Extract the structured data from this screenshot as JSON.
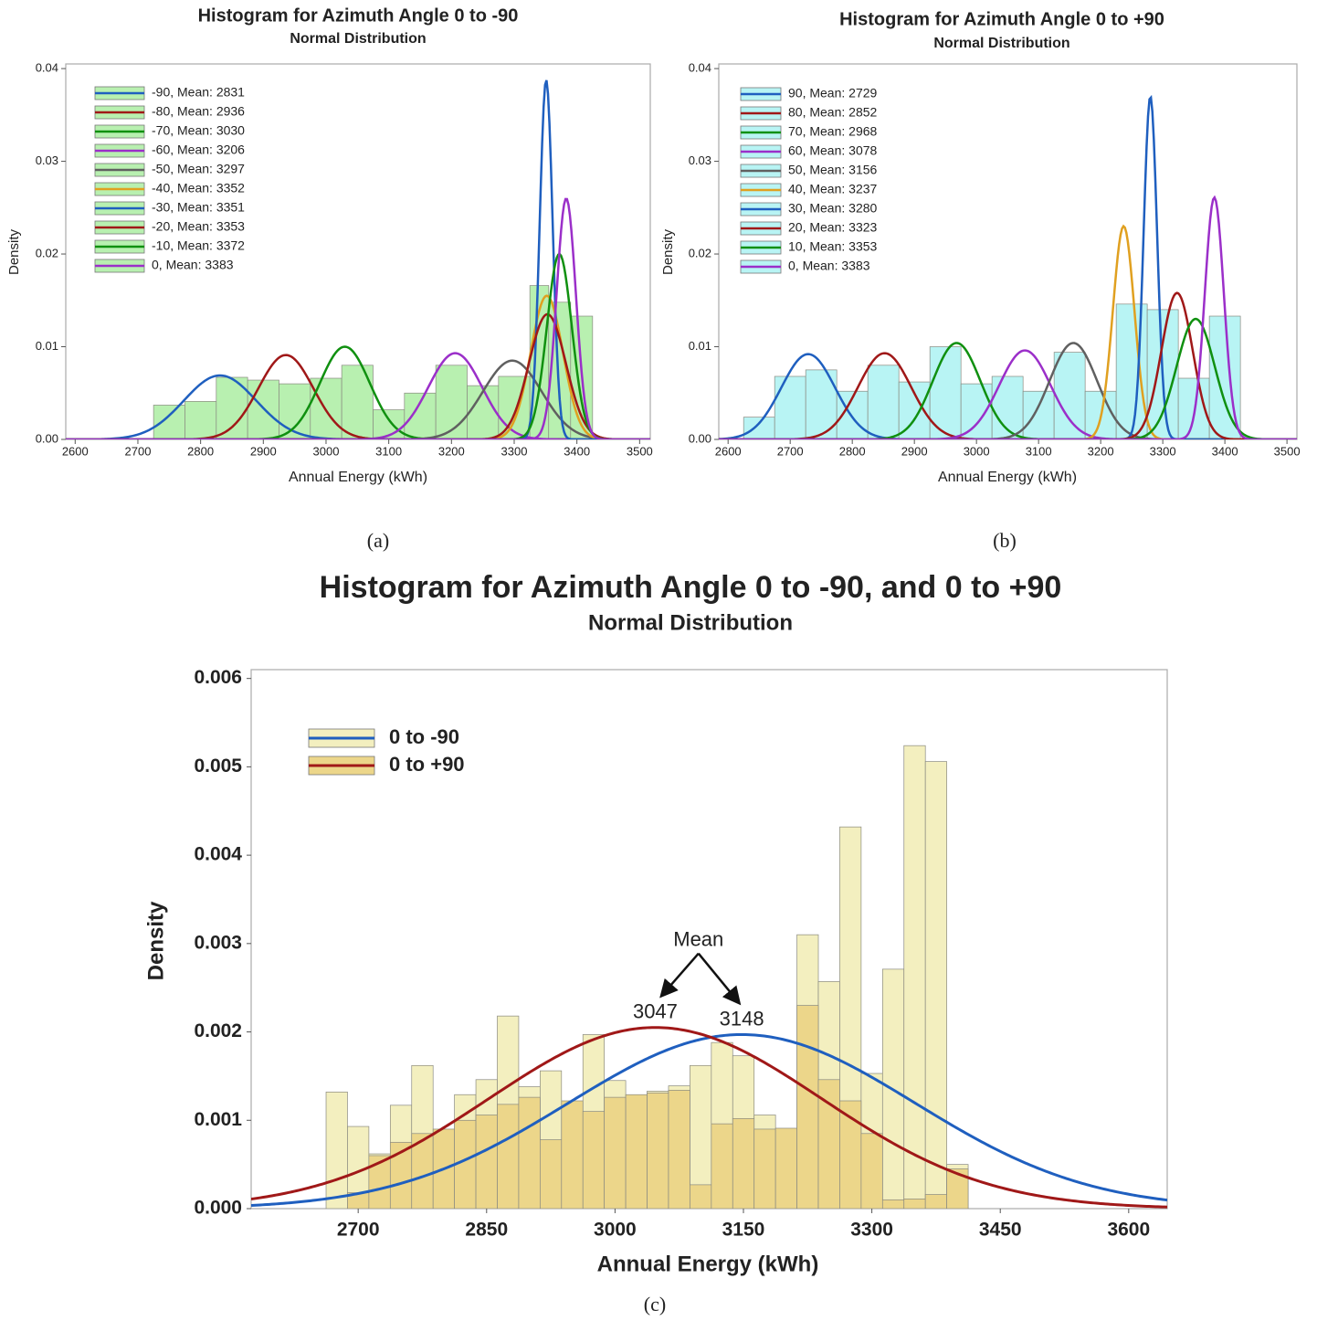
{
  "chart_data": [
    {
      "type": "histogram",
      "title": "Histogram for Azimuth Angle 0 to -90",
      "subtitle": "Normal Distribution",
      "xlabel": "Annual Energy (kWh)",
      "ylabel": "Density",
      "caption": "(a)",
      "xlim": [
        2585,
        3517
      ],
      "ylim": [
        0,
        0.0405
      ],
      "xticks": [
        2600,
        2700,
        2800,
        2900,
        3000,
        3100,
        3200,
        3300,
        3400,
        3500
      ],
      "yticks": [
        {
          "value": 0,
          "label": "0.00"
        },
        0.01,
        0.02,
        0.03,
        0.04
      ],
      "bins": [
        2725,
        2775,
        2825,
        2875,
        2925,
        2975,
        3025,
        3075,
        3125,
        3175,
        3225,
        3275,
        3325,
        3355,
        3390,
        3425
      ],
      "values": [
        0.0037,
        0.0041,
        0.0067,
        0.0064,
        0.006,
        0.0066,
        0.008,
        0.0032,
        0.005,
        0.008,
        0.0058,
        0.0068,
        0.0166,
        0.0148,
        0.0133
      ],
      "bar_color": "#b8f0b0",
      "series": [
        {
          "name": "-90, Mean: 2831",
          "color": "#1f5fbf",
          "mean": 2831,
          "peak": 0.0069
        },
        {
          "name": "-80, Mean: 2936",
          "color": "#a01818",
          "mean": 2936,
          "peak": 0.0091
        },
        {
          "name": "-70, Mean: 3030",
          "color": "#109010",
          "mean": 3030,
          "peak": 0.01
        },
        {
          "name": "-60, Mean: 3206",
          "color": "#9b2fc9",
          "mean": 3206,
          "peak": 0.0093
        },
        {
          "name": "-50, Mean: 3297",
          "color": "#606060",
          "mean": 3297,
          "peak": 0.0085
        },
        {
          "name": "-40, Mean: 3352",
          "color": "#e0a020",
          "mean": 3352,
          "peak": 0.0155
        },
        {
          "name": "-30, Mean: 3351",
          "color": "#1f5fbf",
          "mean": 3351,
          "peak": 0.0388
        },
        {
          "name": "-20, Mean: 3353",
          "color": "#a01818",
          "mean": 3353,
          "peak": 0.0135
        },
        {
          "name": "-10, Mean: 3372",
          "color": "#109010",
          "mean": 3372,
          "peak": 0.02
        },
        {
          "name": "0, Mean: 3383",
          "color": "#9b2fc9",
          "mean": 3383,
          "peak": 0.026
        }
      ]
    },
    {
      "type": "histogram",
      "title": "Histogram for Azimuth Angle 0 to +90",
      "subtitle": "Normal Distribution",
      "xlabel": "Annual Energy (kWh)",
      "ylabel": "Density",
      "caption": "(b)",
      "xlim": [
        2585,
        3516
      ],
      "ylim": [
        0,
        0.0405
      ],
      "xticks": [
        2600,
        2700,
        2800,
        2900,
        3000,
        3100,
        3200,
        3300,
        3400,
        3500
      ],
      "yticks": [
        {
          "value": 0,
          "label": "0.00"
        },
        0.01,
        0.02,
        0.03,
        0.04
      ],
      "bins": [
        2625,
        2675,
        2725,
        2775,
        2825,
        2875,
        2925,
        2975,
        3025,
        3075,
        3125,
        3175,
        3225,
        3275,
        3325,
        3375,
        3425
      ],
      "values": [
        0.0024,
        0.0068,
        0.0075,
        0.0052,
        0.008,
        0.0062,
        0.01,
        0.006,
        0.0068,
        0.0052,
        0.0094,
        0.0052,
        0.0146,
        0.014,
        0.0066,
        0.0133
      ],
      "bar_color": "#b8f4f4",
      "series": [
        {
          "name": "90, Mean: 2729",
          "color": "#1f5fbf",
          "mean": 2729,
          "peak": 0.0092
        },
        {
          "name": "80, Mean: 2852",
          "color": "#a01818",
          "mean": 2852,
          "peak": 0.0093
        },
        {
          "name": "70, Mean: 2968",
          "color": "#109010",
          "mean": 2968,
          "peak": 0.0104
        },
        {
          "name": "60, Mean: 3078",
          "color": "#9b2fc9",
          "mean": 3078,
          "peak": 0.0096
        },
        {
          "name": "50, Mean: 3156",
          "color": "#606060",
          "mean": 3156,
          "peak": 0.0104
        },
        {
          "name": "40, Mean: 3237",
          "color": "#e0a020",
          "mean": 3237,
          "peak": 0.023
        },
        {
          "name": "30, Mean: 3280",
          "color": "#1f5fbf",
          "mean": 3280,
          "peak": 0.037
        },
        {
          "name": "20, Mean: 3323",
          "color": "#a01818",
          "mean": 3323,
          "peak": 0.0158
        },
        {
          "name": "10, Mean: 3353",
          "color": "#109010",
          "mean": 3353,
          "peak": 0.013
        },
        {
          "name": "0, Mean: 3383",
          "color": "#9b2fc9",
          "mean": 3383,
          "peak": 0.0261
        }
      ]
    },
    {
      "type": "histogram",
      "title": "Histogram for Azimuth Angle 0 to -90, and 0 to +90",
      "subtitle": "Normal Distribution",
      "xlabel": "Annual Energy (kWh)",
      "ylabel": "Density",
      "caption": "(c)",
      "annotation": "Mean",
      "xlim": [
        2575,
        3645
      ],
      "ylim": [
        0,
        0.0061
      ],
      "xticks": [
        2700,
        2850,
        3000,
        3150,
        3300,
        3450,
        3600
      ],
      "yticks": [
        {
          "value": 0,
          "label": "0.000"
        },
        {
          "value": 0.001,
          "label": "0.001"
        },
        {
          "value": 0.002,
          "label": "0.002"
        },
        {
          "value": 0.003,
          "label": "0.003"
        },
        {
          "value": 0.004,
          "label": "0.004"
        },
        {
          "value": 0.005,
          "label": "0.005"
        },
        {
          "value": 0.006,
          "label": "0.006"
        }
      ],
      "bins": [
        2662.5,
        2687.5,
        2712.5,
        2737.5,
        2762.5,
        2787.5,
        2812.5,
        2837.5,
        2862.5,
        2887.5,
        2912.5,
        2937.5,
        2962.5,
        2987.5,
        3012.5,
        3037.5,
        3062.5,
        3087.5,
        3112.5,
        3137.5,
        3162.5,
        3187.5,
        3212.5,
        3237.5,
        3262.5,
        3287.5,
        3312.5,
        3337.5,
        3362.5,
        3387.5,
        3412.5
      ],
      "series": [
        {
          "name": "0 to -90",
          "color": "#1f5fbf",
          "mean": 3148,
          "peak": 0.00197,
          "bar_color": "#f3efbf",
          "values": [
            0.00132,
            0.00093,
            0.00062,
            0.00117,
            0.00162,
            0.00081,
            0.00129,
            0.00146,
            0.00218,
            0.00138,
            0.00156,
            0.00115,
            0.00197,
            0.00145,
            0.00112,
            0.00133,
            0.00139,
            0.00162,
            0.00188,
            0.00173,
            0.00106,
            0.00089,
            0.0031,
            0.00257,
            0.00432,
            0.00153,
            0.00271,
            0.00524,
            0.00506,
            0.0005
          ]
        },
        {
          "name": "0 to +90",
          "color": "#a01818",
          "mean": 3047,
          "peak": 0.00205,
          "bar_color": "#ecd68a",
          "values": [
            0.0,
            0.00018,
            0.0006,
            0.00075,
            0.00085,
            0.0009,
            0.001,
            0.00106,
            0.00118,
            0.00126,
            0.00078,
            0.00122,
            0.0011,
            0.00126,
            0.00129,
            0.00131,
            0.00134,
            0.00027,
            0.00096,
            0.00102,
            0.0009,
            0.00091,
            0.0023,
            0.00146,
            0.00122,
            0.00085,
            0.0001,
            0.00011,
            0.00016,
            0.00045
          ]
        }
      ]
    }
  ]
}
